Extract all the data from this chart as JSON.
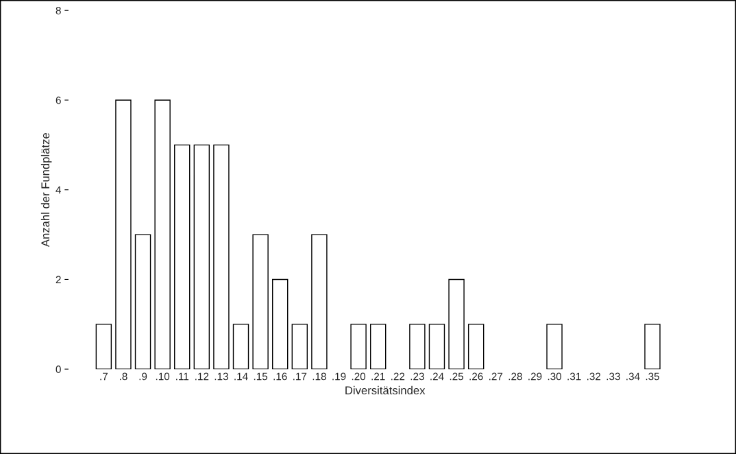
{
  "chart_data": {
    "type": "bar",
    "xlabel": "Diversitätsindex",
    "ylabel": "Anzahl der Fundplätze",
    "categories": [
      ".7",
      ".8",
      ".9",
      ".10",
      ".11",
      ".12",
      ".13",
      ".14",
      ".15",
      ".16",
      ".17",
      ".18",
      ".19",
      ".20",
      ".21",
      ".22",
      ".23",
      ".24",
      ".25",
      ".26",
      ".27",
      ".28",
      ".29",
      ".30",
      ".31",
      ".32",
      ".33",
      ".34",
      ".35"
    ],
    "values": [
      1,
      6,
      3,
      6,
      5,
      5,
      5,
      1,
      3,
      2,
      1,
      3,
      0,
      1,
      1,
      0,
      1,
      1,
      2,
      1,
      0,
      0,
      0,
      1,
      0,
      0,
      0,
      0,
      1
    ],
    "color": "#ffffff",
    "ylim": [
      0,
      8
    ],
    "yticks": [
      0,
      2,
      4,
      6,
      8
    ],
    "grid": false,
    "legend": false
  }
}
